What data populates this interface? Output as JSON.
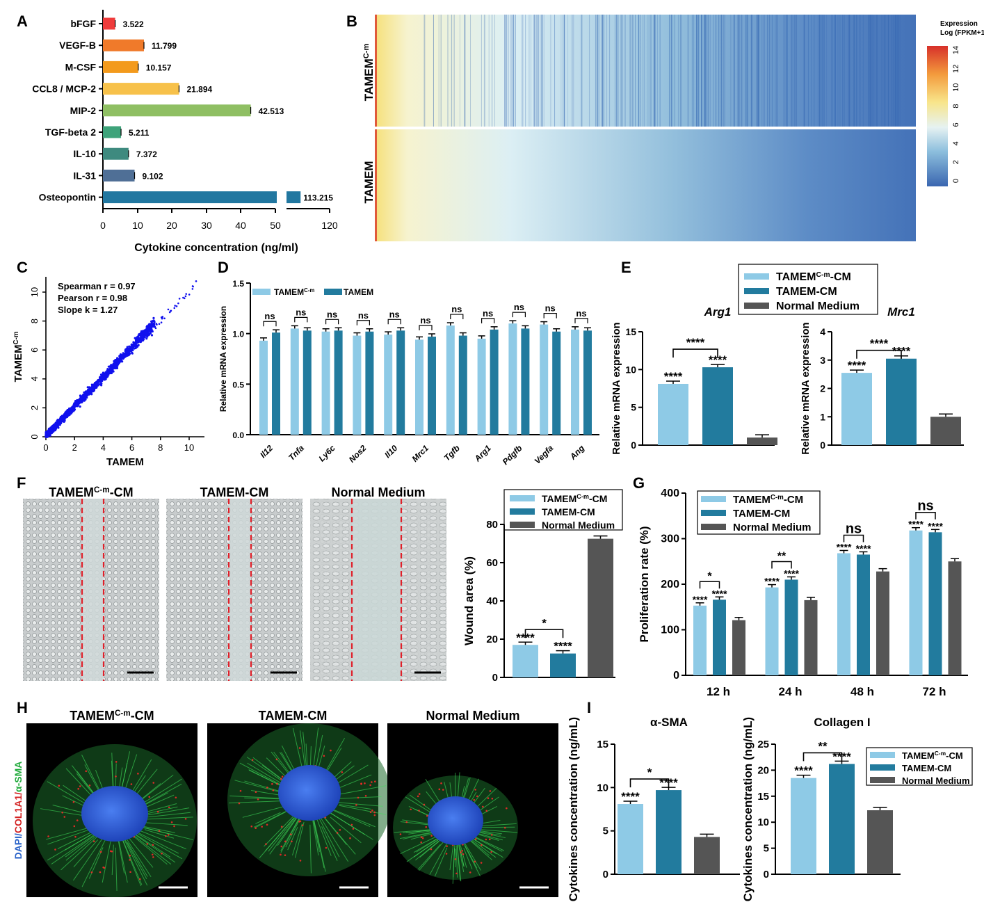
{
  "panel_letters": [
    "A",
    "B",
    "C",
    "D",
    "E",
    "F",
    "G",
    "H",
    "I"
  ],
  "colors": {
    "light_blue": "#8ecae6",
    "teal": "#227b9e",
    "gray": "#555555",
    "heatmap_low": "#3f6db3",
    "heatmap_mid": "#e0f0f5",
    "heatmap_high": "#d7302a",
    "scatter": "#1010ee",
    "bars_A": [
      "#ef3b3b",
      "#f07a2a",
      "#f39a1c",
      "#f7c14a",
      "#8fbf63",
      "#3ea37a",
      "#3e8a7f",
      "#4f6f96",
      "#2177a0"
    ]
  },
  "legend_labels": {
    "cm_base": "TAMEM",
    "cm_sup": "C-m",
    "cm_suffix": "-CM",
    "tamem_cm": "TAMEM-CM",
    "normal": "Normal Medium",
    "tamem": "TAMEM"
  },
  "chart_data": [
    {
      "panel": "A",
      "type": "bar",
      "orientation": "horizontal",
      "categories": [
        "bFGF",
        "VEGF-B",
        "M-CSF",
        "CCL8 / MCP-2",
        "MIP-2",
        "TGF-beta 2",
        "IL-10",
        "IL-31",
        "Osteopontin"
      ],
      "values": [
        3.522,
        11.799,
        10.157,
        21.894,
        42.513,
        5.211,
        7.372,
        9.102,
        113.215
      ],
      "value_labels": [
        "3.522",
        "11.799",
        "10.157",
        "21.894",
        "42.513",
        "5.211",
        "7.372",
        "9.102",
        "113.215"
      ],
      "xlabel": "Cytokine concentration (ng/ml)",
      "xticks": [
        "0",
        "10",
        "20",
        "30",
        "40",
        "50",
        "120"
      ],
      "axis_break": [
        50,
        110
      ]
    },
    {
      "panel": "B",
      "type": "heatmap",
      "rows": [
        "TAMEM",
        "TAMEM"
      ],
      "row_sup": [
        "C-m",
        ""
      ],
      "colorbar_title": [
        "Expression",
        "Log (FPKM+1)"
      ],
      "colorbar_ticks": [
        "0",
        "2",
        "4",
        "6",
        "8",
        "10",
        "12",
        "14"
      ],
      "range": [
        0,
        14
      ]
    },
    {
      "panel": "C",
      "type": "scatter",
      "annotations": [
        "Spearman r = 0.97",
        "Pearson r = 0.98",
        "Slope k = 1.27"
      ],
      "xlabel": "TAMEM",
      "ylabel_base": "TAMEM",
      "ylabel_sup": "C-m",
      "xticks": [
        "0",
        "2",
        "4",
        "6",
        "8",
        "10"
      ],
      "yticks": [
        "0",
        "2",
        "4",
        "6",
        "8",
        "10"
      ],
      "xlim": [
        0,
        11
      ],
      "ylim": [
        0,
        11
      ]
    },
    {
      "panel": "D",
      "type": "bar",
      "categories": [
        "Il12",
        "Tnfa",
        "Ly6c",
        "Nos2",
        "Il10",
        "Mrc1",
        "Tgfb",
        "Arg1",
        "Pdgfb",
        "Vegfa",
        "Ang"
      ],
      "series": [
        {
          "name": "TAMEM",
          "sup": "C-m",
          "values": [
            0.93,
            1.05,
            1.02,
            0.98,
            0.99,
            0.94,
            1.08,
            0.95,
            1.1,
            1.09,
            1.04
          ]
        },
        {
          "name": "TAMEM",
          "values": [
            1.01,
            1.03,
            1.03,
            1.02,
            1.03,
            0.97,
            0.98,
            1.04,
            1.05,
            1.02,
            1.03
          ]
        }
      ],
      "significance": [
        "ns",
        "ns",
        "ns",
        "ns",
        "ns",
        "ns",
        "ns",
        "ns",
        "ns",
        "ns",
        "ns"
      ],
      "ylabel": "Relative mRNA expression",
      "yticks": [
        "0.0",
        "0.5",
        "1.0",
        "1.5"
      ],
      "ylim": [
        0,
        1.5
      ]
    },
    {
      "panel": "E",
      "type": "bar",
      "title": "Arg1",
      "categories": [
        "TAMEM-C-m-CM",
        "TAMEM-CM",
        "Normal Medium"
      ],
      "values": [
        8.1,
        10.3,
        1.0
      ],
      "bar_labels": [
        "****",
        "****",
        ""
      ],
      "bracket": "****",
      "ylabel": "Relative mRNA expression",
      "yticks": [
        "0",
        "5",
        "10",
        "15"
      ],
      "ylim": [
        0,
        15
      ]
    },
    {
      "panel": "E",
      "type": "bar",
      "title": "Mrc1",
      "categories": [
        "TAMEM-C-m-CM",
        "TAMEM-CM",
        "Normal Medium"
      ],
      "values": [
        2.55,
        3.05,
        1.0
      ],
      "bar_labels": [
        "****",
        "****",
        ""
      ],
      "bracket": "****",
      "ylabel": "Relative mRNA expression",
      "yticks": [
        "0",
        "1",
        "2",
        "3",
        "4"
      ],
      "ylim": [
        0,
        4
      ]
    },
    {
      "panel": "F",
      "type": "bar",
      "categories": [
        "TAMEM-C-m-CM",
        "TAMEM-CM",
        "Normal Medium"
      ],
      "values": [
        17,
        12.5,
        72.5
      ],
      "bar_labels": [
        "****",
        "****",
        ""
      ],
      "bracket": "*",
      "ylabel": "Wound area (%)",
      "yticks": [
        "0",
        "20",
        "40",
        "60",
        "80"
      ],
      "ylim": [
        0,
        80
      ]
    },
    {
      "panel": "G",
      "type": "bar",
      "categories": [
        "12 h",
        "24 h",
        "48 h",
        "72 h"
      ],
      "series": [
        {
          "name": "TAMEM-C-m-CM",
          "values": [
            153,
            193,
            268,
            318
          ]
        },
        {
          "name": "TAMEM-CM",
          "values": [
            166,
            210,
            265,
            314
          ]
        },
        {
          "name": "Normal Medium",
          "values": [
            121,
            165,
            228,
            250
          ]
        }
      ],
      "bar_labels": [
        "****",
        "****"
      ],
      "brackets": [
        "*",
        "**",
        "ns",
        "ns"
      ],
      "ylabel": "Proliferation rate (%)",
      "yticks": [
        "0",
        "100",
        "200",
        "300",
        "400"
      ],
      "ylim": [
        0,
        400
      ]
    },
    {
      "panel": "I",
      "type": "bar",
      "title": "α-SMA",
      "categories": [
        "TAMEM-C-m-CM",
        "TAMEM-CM",
        "Normal Medium"
      ],
      "values": [
        8.1,
        9.7,
        4.3
      ],
      "bar_labels": [
        "****",
        "****",
        ""
      ],
      "bracket": "*",
      "ylabel": "Cytokines concentration (ng/mL)",
      "yticks": [
        "0",
        "5",
        "10",
        "15"
      ],
      "ylim": [
        0,
        15
      ]
    },
    {
      "panel": "I",
      "type": "bar",
      "title": "Collagen I",
      "categories": [
        "TAMEM-C-m-CM",
        "TAMEM-CM",
        "Normal Medium"
      ],
      "values": [
        18.5,
        21.2,
        12.3
      ],
      "bar_labels": [
        "****",
        "****",
        ""
      ],
      "bracket": "**",
      "ylabel": "Cytokines concentration (ng/mL)",
      "yticks": [
        "0",
        "5",
        "10",
        "15",
        "20",
        "25"
      ],
      "ylim": [
        0,
        25
      ]
    }
  ],
  "panel_F": {
    "image_titles": [
      {
        "base": "TAMEM",
        "sup": "C-m",
        "suffix": "-CM"
      },
      {
        "base": "TAMEM-CM",
        "sup": "",
        "suffix": ""
      },
      {
        "base": "Normal Medium",
        "sup": "",
        "suffix": ""
      }
    ]
  },
  "panel_H": {
    "image_titles": [
      {
        "base": "TAMEM",
        "sup": "C-m",
        "suffix": "-CM"
      },
      {
        "base": "TAMEM-CM",
        "sup": "",
        "suffix": ""
      },
      {
        "base": "Normal Medium",
        "sup": "",
        "suffix": ""
      }
    ],
    "stain_label": [
      "DAPI/",
      "COL1A1/",
      "α-SMA"
    ],
    "stain_colors": [
      "#2a63c9",
      "#d32020",
      "#1faa3a"
    ]
  }
}
